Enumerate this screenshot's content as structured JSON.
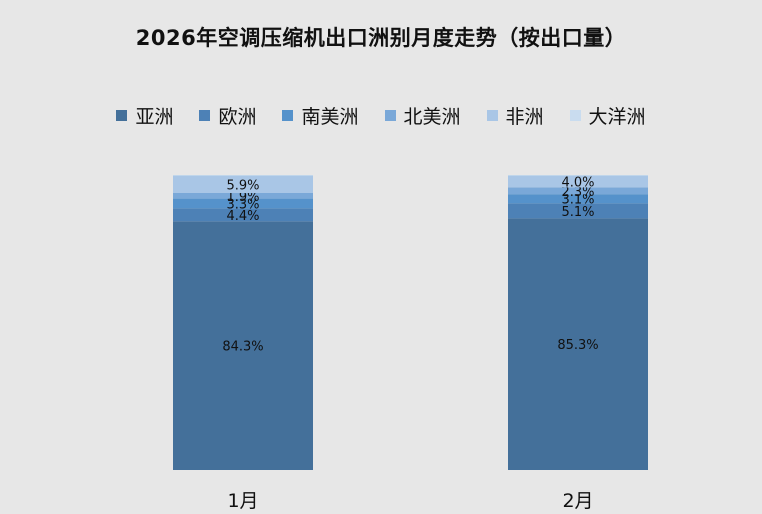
{
  "chart_data": {
    "type": "bar",
    "stacked": true,
    "title": "2026年空调压缩机出口洲别月度走势（按出口量）",
    "xlabel": "",
    "ylabel": "",
    "ylim": [
      0,
      100
    ],
    "legend_position": "top",
    "grid": false,
    "categories": [
      "1月",
      "2月"
    ],
    "series": [
      {
        "name": "亚洲",
        "color": "#44709a",
        "values": [
          84.3,
          85.3
        ],
        "labels": [
          "84.3%",
          "85.3%"
        ]
      },
      {
        "name": "欧洲",
        "color": "#4d81b6",
        "values": [
          4.4,
          5.1
        ],
        "labels": [
          "4.4%",
          "5.1%"
        ]
      },
      {
        "name": "南美洲",
        "color": "#5592cb",
        "values": [
          3.3,
          3.1
        ],
        "labels": [
          "3.3%",
          "3.1%"
        ]
      },
      {
        "name": "北美洲",
        "color": "#7aa8d8",
        "values": [
          1.9,
          2.3
        ],
        "labels": [
          "1.9%",
          "2.3%"
        ]
      },
      {
        "name": "非洲",
        "color": "#a9c6e6",
        "values": [
          5.9,
          4.0
        ],
        "labels": [
          "5.9%",
          "4.0%"
        ]
      },
      {
        "name": "大洋洲",
        "color": "#c9dcef",
        "values": [
          0.2,
          0.2
        ],
        "labels": [
          "",
          ""
        ]
      }
    ]
  }
}
